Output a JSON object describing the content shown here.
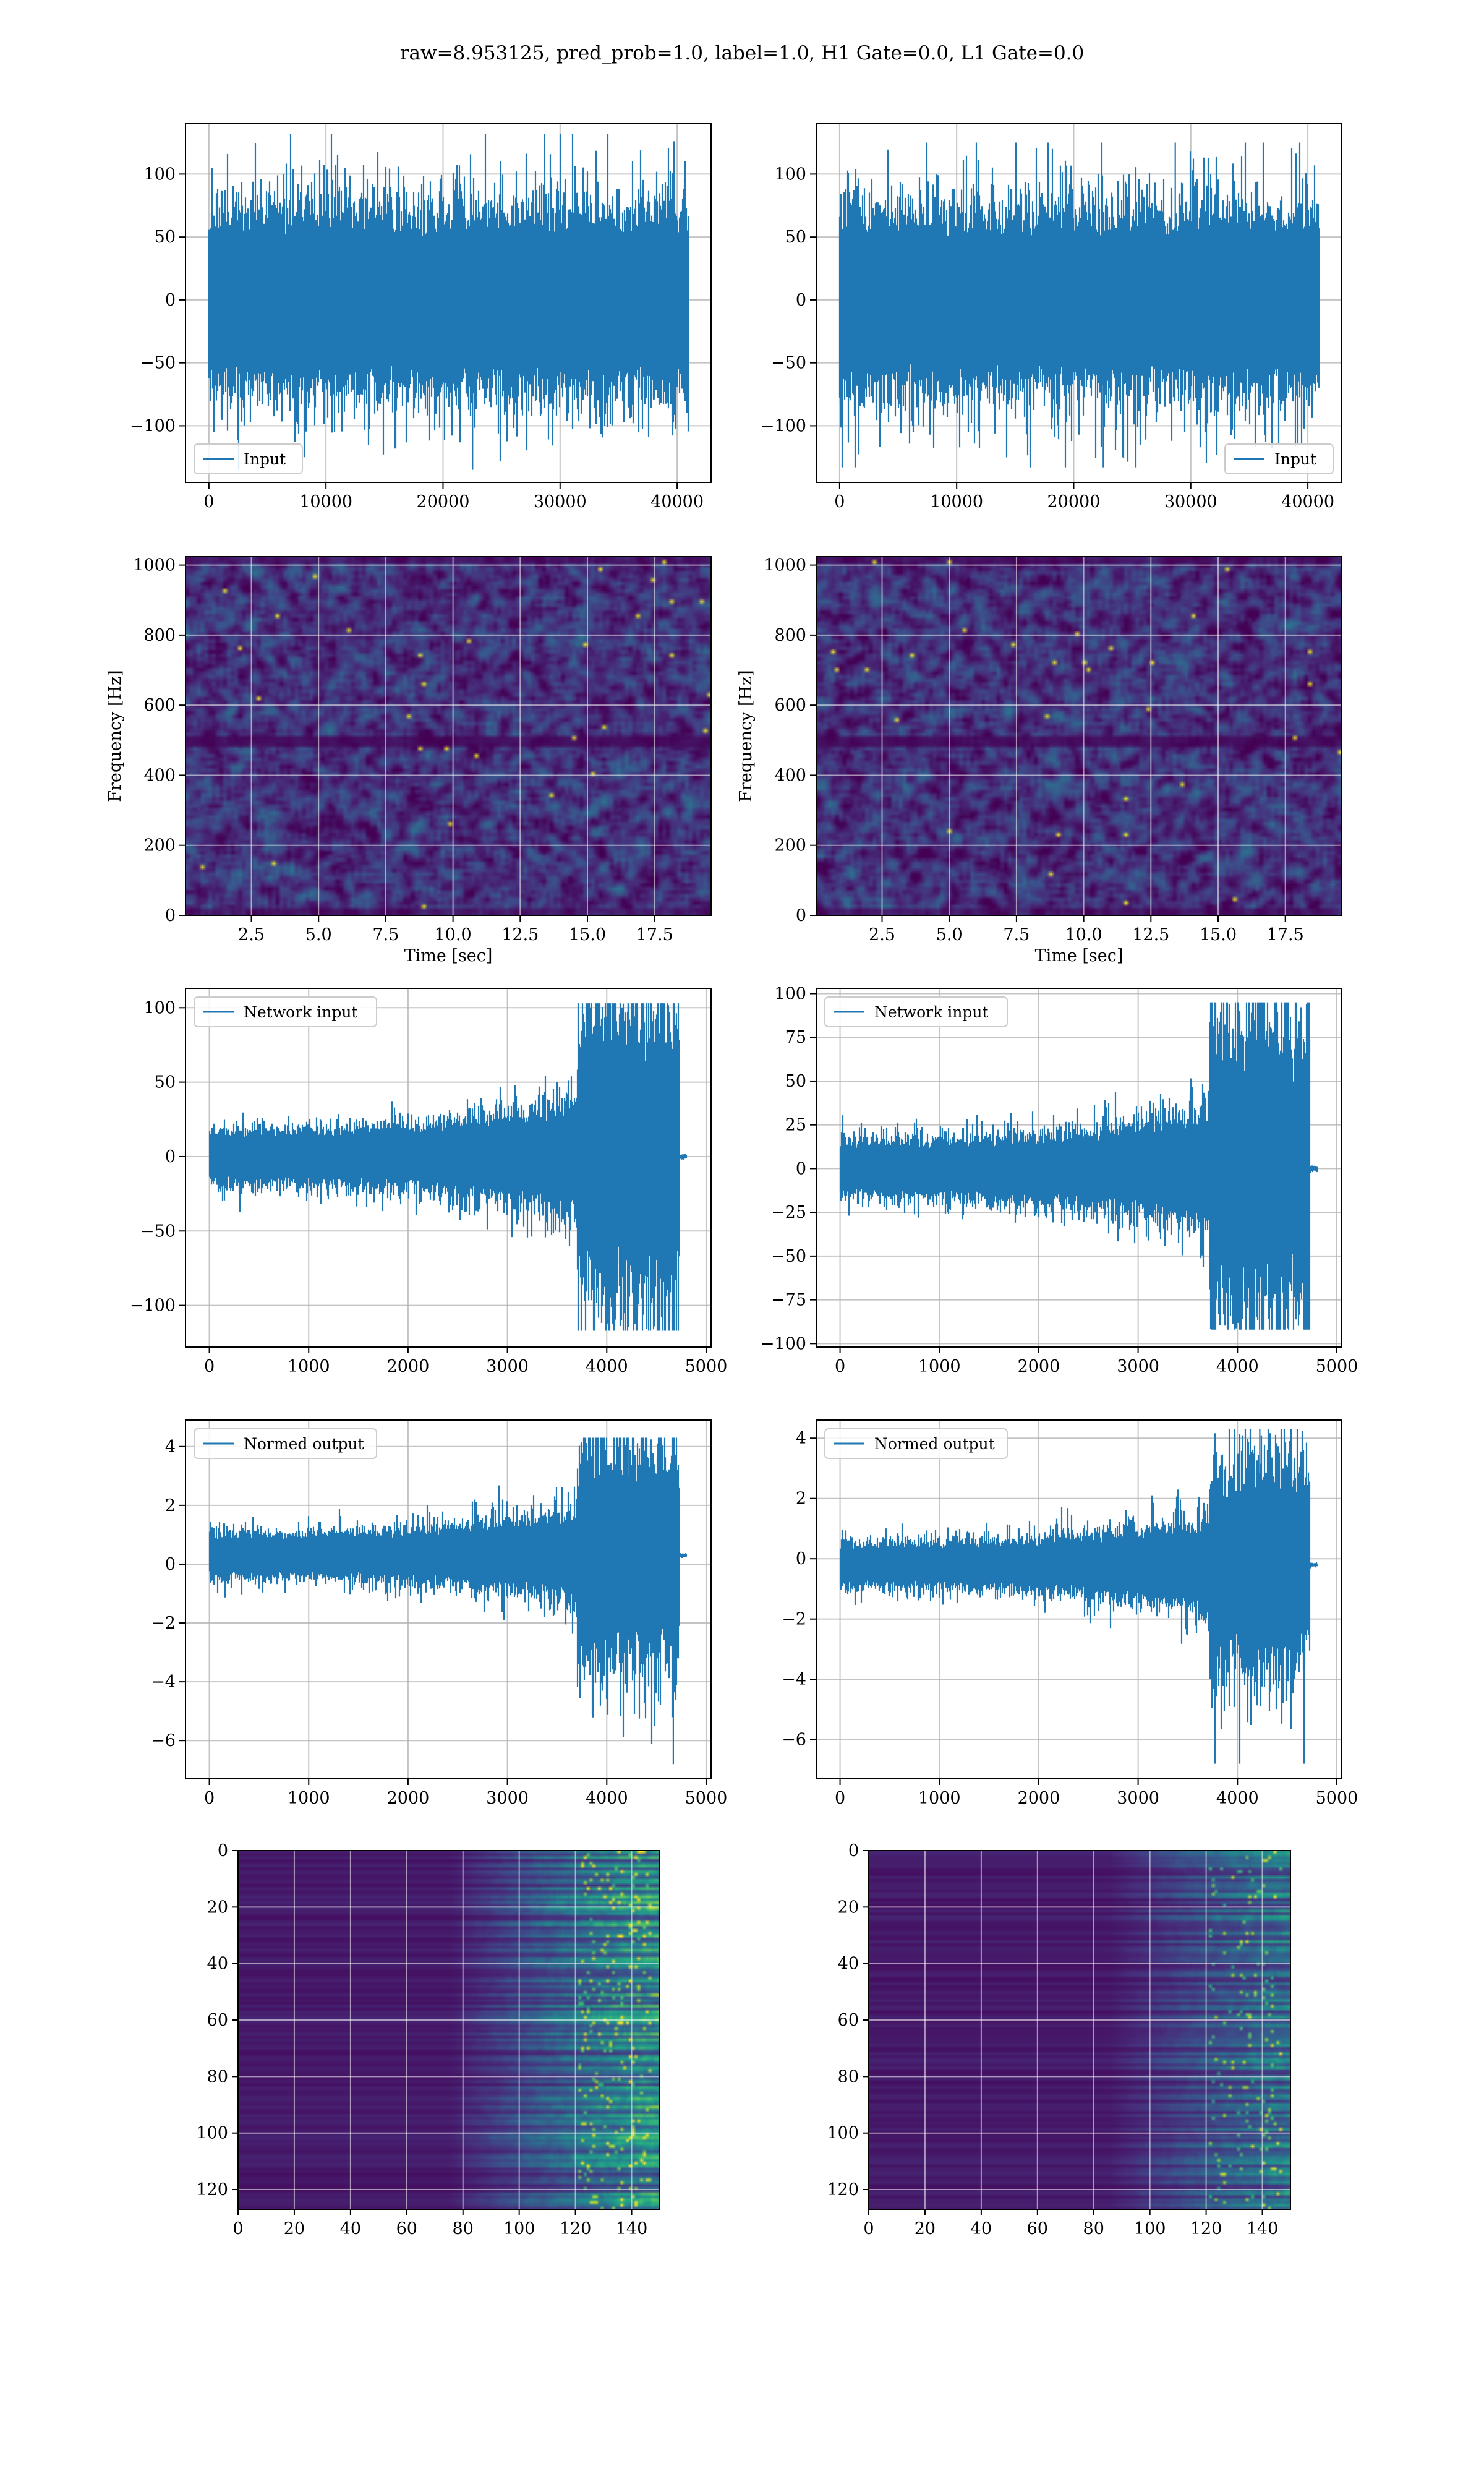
{
  "title": "raw=8.953125, pred_prob=1.0, label=1.0, H1 Gate=0.0, L1 Gate=0.0",
  "colors": {
    "series": "#1f77b4",
    "grid": "#b0b0b0",
    "heat_low": "#440154",
    "heat_mid": "#21918c",
    "heat_high": "#fde725"
  },
  "chart_data": [
    {
      "id": "input-h1",
      "type": "line",
      "legend": [
        "Input"
      ],
      "legend_loc": "lower-left",
      "xlim": [
        -2000,
        42900
      ],
      "ylim": [
        -145,
        140
      ],
      "xticks": [
        0,
        10000,
        20000,
        30000,
        40000
      ],
      "yticks": [
        -100,
        -50,
        0,
        50,
        100
      ],
      "grid": true,
      "signal": {
        "n": 40960,
        "env": "flat",
        "amp": [
          30,
          32
        ],
        "peak_max": 132,
        "peak_min": -135,
        "dc": 0
      }
    },
    {
      "id": "input-l1",
      "type": "line",
      "legend": [
        "Input"
      ],
      "legend_loc": "lower-right",
      "xlim": [
        -2000,
        42900
      ],
      "ylim": [
        -145,
        140
      ],
      "xticks": [
        0,
        10000,
        20000,
        30000,
        40000
      ],
      "yticks": [
        -100,
        -50,
        0,
        50,
        100
      ],
      "grid": true,
      "signal": {
        "n": 40960,
        "env": "flat",
        "amp": [
          30,
          32
        ],
        "peak_max": 125,
        "peak_min": -133,
        "dc": 0
      }
    },
    {
      "id": "spec-h1",
      "type": "heatmap",
      "xlabel": "Time [sec]",
      "ylabel": "Frequency [Hz]",
      "xlim": [
        0.05,
        19.6
      ],
      "ylim": [
        0,
        1024
      ],
      "xticks": [
        2.5,
        5.0,
        7.5,
        10.0,
        12.5,
        15.0,
        17.5
      ],
      "yticks": [
        0,
        200,
        400,
        600,
        800,
        1000
      ],
      "grid": true,
      "band_hz": 500
    },
    {
      "id": "spec-l1",
      "type": "heatmap",
      "xlabel": "Time [sec]",
      "ylabel": "Frequency [Hz]",
      "xlim": [
        0.05,
        19.6
      ],
      "ylim": [
        0,
        1024
      ],
      "xticks": [
        2.5,
        5.0,
        7.5,
        10.0,
        12.5,
        15.0,
        17.5
      ],
      "yticks": [
        0,
        200,
        400,
        600,
        800,
        1000
      ],
      "grid": true,
      "band_hz": 500
    },
    {
      "id": "netin-h1",
      "type": "line",
      "legend": [
        "Network input"
      ],
      "legend_loc": "upper-left",
      "xlim": [
        -240,
        5050
      ],
      "ylim": [
        -128,
        113
      ],
      "xticks": [
        0,
        1000,
        2000,
        3000,
        4000,
        5000
      ],
      "yticks": [
        -100,
        -50,
        0,
        50,
        100
      ],
      "grid": true,
      "signal": {
        "n": 4800,
        "env": "chirp",
        "amp": [
          8,
          42
        ],
        "ramp": [
          0,
          3700
        ],
        "burst": [
          3700,
          4730
        ],
        "peak_max": 103,
        "peak_min": -117,
        "tail": [
          4730,
          4800
        ],
        "tail_level": 0,
        "dc": 0
      }
    },
    {
      "id": "netin-l1",
      "type": "line",
      "legend": [
        "Network input"
      ],
      "legend_loc": "upper-left",
      "xlim": [
        -240,
        5050
      ],
      "ylim": [
        -102,
        103
      ],
      "xticks": [
        0,
        1000,
        2000,
        3000,
        4000,
        5000
      ],
      "yticks": [
        -100,
        -75,
        -50,
        -25,
        0,
        25,
        50,
        75,
        100
      ],
      "grid": true,
      "signal": {
        "n": 4800,
        "env": "chirp",
        "amp": [
          7,
          35
        ],
        "ramp": [
          0,
          3720
        ],
        "burst": [
          3720,
          4730
        ],
        "peak_max": 95,
        "peak_min": -92,
        "tail": [
          4730,
          4800
        ],
        "tail_level": 0,
        "dc": 0
      }
    },
    {
      "id": "normout-h1",
      "type": "line",
      "legend": [
        "Normed output"
      ],
      "legend_loc": "upper-left",
      "xlim": [
        -240,
        5050
      ],
      "ylim": [
        -7.3,
        4.9
      ],
      "xticks": [
        0,
        1000,
        2000,
        3000,
        4000,
        5000
      ],
      "yticks": [
        -6,
        -4,
        -2,
        0,
        2,
        4
      ],
      "grid": true,
      "signal": {
        "n": 4800,
        "env": "chirp",
        "amp": [
          0.32,
          1.5
        ],
        "ramp": [
          0,
          3700
        ],
        "burst": [
          3700,
          4730
        ],
        "peak_max": 4.3,
        "peak_min": -6.8,
        "tail": [
          4730,
          4800
        ],
        "tail_level": 0.3,
        "dc": 0.3
      }
    },
    {
      "id": "normout-l1",
      "type": "line",
      "legend": [
        "Normed output"
      ],
      "legend_loc": "upper-left",
      "xlim": [
        -240,
        5050
      ],
      "ylim": [
        -7.3,
        4.6
      ],
      "xticks": [
        0,
        1000,
        2000,
        3000,
        4000,
        5000
      ],
      "yticks": [
        -6,
        -4,
        -2,
        0,
        2,
        4
      ],
      "grid": true,
      "signal": {
        "n": 4800,
        "env": "chirp",
        "amp": [
          0.32,
          1.4
        ],
        "ramp": [
          0,
          3720
        ],
        "burst": [
          3720,
          4730
        ],
        "peak_max": 4.3,
        "peak_min": -6.8,
        "tail": [
          4730,
          4800
        ],
        "tail_level": -0.2,
        "dc": -0.2
      }
    },
    {
      "id": "feat-h1",
      "type": "heatmap",
      "xlim": [
        0,
        150
      ],
      "ylim": [
        127,
        0
      ],
      "xticks": [
        0,
        20,
        40,
        60,
        80,
        100,
        120,
        140
      ],
      "yticks": [
        0,
        20,
        40,
        60,
        80,
        100,
        120
      ],
      "grid": true,
      "onset": 95,
      "intensity": 1.0
    },
    {
      "id": "feat-l1",
      "type": "heatmap",
      "xlim": [
        0,
        150
      ],
      "ylim": [
        127,
        0
      ],
      "xticks": [
        0,
        20,
        40,
        60,
        80,
        100,
        120,
        140
      ],
      "yticks": [
        0,
        20,
        40,
        60,
        80,
        100,
        120
      ],
      "grid": true,
      "onset": 105,
      "intensity": 0.7
    }
  ]
}
